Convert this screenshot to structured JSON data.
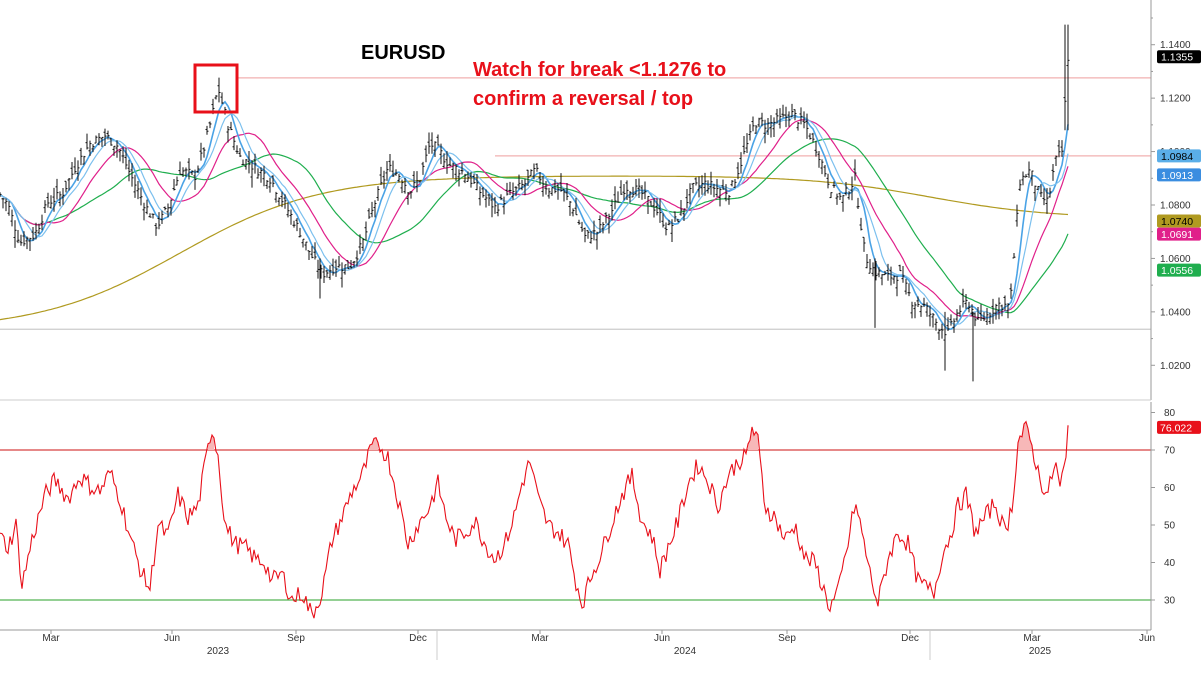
{
  "chart_data": [
    {
      "type": "candlestick",
      "title": "EURUSD",
      "annotation": [
        "Watch for break <1.1276 to",
        "confirm a reversal / top"
      ],
      "ylim": [
        1.01,
        1.15
      ],
      "y_ticks": [
        "1.0200",
        "1.0400",
        "1.0600",
        "1.0800",
        "1.1000",
        "1.1200",
        "1.1400"
      ],
      "y_tick_values": [
        1.02,
        1.04,
        1.06,
        1.08,
        1.1,
        1.12,
        1.14
      ],
      "levels": [
        {
          "name": "resistance",
          "value": 1.1276,
          "color": "#f2b0b0"
        },
        {
          "name": "support-mid",
          "value": 1.0984,
          "color": "#f2b0b0"
        },
        {
          "name": "support-low",
          "value": 1.0335,
          "color": "#cccccc"
        }
      ],
      "badges": [
        {
          "value": "1.1355",
          "y": 1.1355,
          "bg": "#000000",
          "fg": "#ffffff"
        },
        {
          "value": "1.0984",
          "y": 1.0984,
          "bg": "#5aaee8",
          "fg": "#000000"
        },
        {
          "value": "1.0913",
          "y": 1.0913,
          "bg": "#3a8de0",
          "fg": "#ffffff"
        },
        {
          "value": "1.0740",
          "y": 1.074,
          "bg": "#b09a20",
          "fg": "#000000"
        },
        {
          "value": "1.0691",
          "y": 1.0691,
          "bg": "#e0208a",
          "fg": "#ffffff"
        },
        {
          "value": "1.0556",
          "y": 1.0556,
          "bg": "#1fae4e",
          "fg": "#ffffff"
        }
      ],
      "price_anchors": [
        [
          0,
          1.084
        ],
        [
          8,
          1.08
        ],
        [
          20,
          1.066
        ],
        [
          35,
          1.069
        ],
        [
          48,
          1.081
        ],
        [
          62,
          1.084
        ],
        [
          75,
          1.094
        ],
        [
          90,
          1.103
        ],
        [
          105,
          1.106
        ],
        [
          118,
          1.102
        ],
        [
          132,
          1.09
        ],
        [
          145,
          1.08
        ],
        [
          157,
          1.072
        ],
        [
          168,
          1.079
        ],
        [
          180,
          1.093
        ],
        [
          195,
          1.091
        ],
        [
          203,
          1.1
        ],
        [
          212,
          1.113
        ],
        [
          218,
          1.124
        ],
        [
          228,
          1.11
        ],
        [
          240,
          1.098
        ],
        [
          255,
          1.094
        ],
        [
          270,
          1.09
        ],
        [
          285,
          1.08
        ],
        [
          300,
          1.07
        ],
        [
          310,
          1.062
        ],
        [
          322,
          1.054
        ],
        [
          335,
          1.057
        ],
        [
          350,
          1.057
        ],
        [
          362,
          1.065
        ],
        [
          375,
          1.081
        ],
        [
          388,
          1.094
        ],
        [
          400,
          1.091
        ],
        [
          410,
          1.085
        ],
        [
          420,
          1.09
        ],
        [
          430,
          1.103
        ],
        [
          437,
          1.101
        ],
        [
          450,
          1.095
        ],
        [
          465,
          1.092
        ],
        [
          480,
          1.085
        ],
        [
          495,
          1.079
        ],
        [
          510,
          1.084
        ],
        [
          525,
          1.088
        ],
        [
          535,
          1.093
        ],
        [
          548,
          1.086
        ],
        [
          560,
          1.086
        ],
        [
          572,
          1.08
        ],
        [
          585,
          1.068
        ],
        [
          598,
          1.07
        ],
        [
          612,
          1.078
        ],
        [
          625,
          1.087
        ],
        [
          640,
          1.085
        ],
        [
          655,
          1.079
        ],
        [
          668,
          1.071
        ],
        [
          680,
          1.076
        ],
        [
          692,
          1.086
        ],
        [
          705,
          1.088
        ],
        [
          718,
          1.086
        ],
        [
          730,
          1.085
        ],
        [
          742,
          1.097
        ],
        [
          755,
          1.111
        ],
        [
          768,
          1.11
        ],
        [
          780,
          1.112
        ],
        [
          792,
          1.114
        ],
        [
          805,
          1.11
        ],
        [
          818,
          1.1
        ],
        [
          830,
          1.087
        ],
        [
          842,
          1.082
        ],
        [
          855,
          1.09
        ],
        [
          865,
          1.061
        ],
        [
          875,
          1.055
        ],
        [
          888,
          1.053
        ],
        [
          900,
          1.054
        ],
        [
          912,
          1.044
        ],
        [
          925,
          1.042
        ],
        [
          938,
          1.035
        ],
        [
          948,
          1.032
        ],
        [
          958,
          1.04
        ],
        [
          968,
          1.044
        ],
        [
          978,
          1.036
        ],
        [
          988,
          1.039
        ],
        [
          998,
          1.043
        ],
        [
          1010,
          1.042
        ],
        [
          1020,
          1.089
        ],
        [
          1030,
          1.093
        ],
        [
          1040,
          1.083
        ],
        [
          1048,
          1.081
        ],
        [
          1055,
          1.096
        ],
        [
          1062,
          1.1
        ],
        [
          1068,
          1.1355
        ]
      ],
      "ma_colors": {
        "ma_fast": "#4aa3e6",
        "ma_mid": "#e0208a",
        "ma_slow_green": "#1fae4e",
        "ma_slow_olive": "#b09a20"
      },
      "x_ticks": [
        "Mar",
        "Jun",
        "Sep",
        "Dec",
        "Mar",
        "Jun",
        "Sep",
        "Dec",
        "Mar",
        "Jun"
      ],
      "x_years": [
        "2023",
        "2024",
        "2025"
      ]
    },
    {
      "type": "line",
      "series": [
        {
          "name": "RSI",
          "color": "#e8101a"
        }
      ],
      "ylim": [
        22,
        82
      ],
      "y_ticks": [
        "30",
        "40",
        "50",
        "60",
        "70",
        "80"
      ],
      "y_tick_values": [
        30,
        40,
        50,
        60,
        70,
        80
      ],
      "levels": [
        {
          "value": 70,
          "color": "#cc1111"
        },
        {
          "value": 30,
          "color": "#2aa02a"
        }
      ],
      "badge": {
        "value": "76.022",
        "y": 76.022,
        "bg": "#e8101a",
        "fg": "#ffffff"
      },
      "rsi_anchors": [
        [
          0,
          47
        ],
        [
          8,
          44
        ],
        [
          16,
          50
        ],
        [
          22,
          34
        ],
        [
          32,
          46
        ],
        [
          45,
          58
        ],
        [
          55,
          62
        ],
        [
          68,
          57
        ],
        [
          80,
          63
        ],
        [
          92,
          60
        ],
        [
          100,
          59
        ],
        [
          110,
          64
        ],
        [
          120,
          57
        ],
        [
          132,
          45
        ],
        [
          142,
          37
        ],
        [
          150,
          33
        ],
        [
          158,
          50
        ],
        [
          168,
          47
        ],
        [
          178,
          58
        ],
        [
          188,
          52
        ],
        [
          198,
          55
        ],
        [
          205,
          66
        ],
        [
          212,
          76
        ],
        [
          218,
          69
        ],
        [
          225,
          50
        ],
        [
          235,
          45
        ],
        [
          245,
          44
        ],
        [
          255,
          41
        ],
        [
          265,
          40
        ],
        [
          272,
          35
        ],
        [
          282,
          37
        ],
        [
          292,
          30
        ],
        [
          302,
          32
        ],
        [
          312,
          26
        ],
        [
          322,
          32
        ],
        [
          332,
          46
        ],
        [
          342,
          52
        ],
        [
          352,
          59
        ],
        [
          362,
          63
        ],
        [
          372,
          71
        ],
        [
          380,
          71
        ],
        [
          388,
          68
        ],
        [
          398,
          57
        ],
        [
          408,
          45
        ],
        [
          418,
          50
        ],
        [
          428,
          54
        ],
        [
          438,
          61
        ],
        [
          446,
          52
        ],
        [
          455,
          46
        ],
        [
          465,
          48
        ],
        [
          475,
          51
        ],
        [
          485,
          45
        ],
        [
          495,
          41
        ],
        [
          505,
          45
        ],
        [
          515,
          53
        ],
        [
          522,
          61
        ],
        [
          530,
          67
        ],
        [
          538,
          57
        ],
        [
          548,
          50
        ],
        [
          558,
          48
        ],
        [
          568,
          45
        ],
        [
          575,
          36
        ],
        [
          582,
          29
        ],
        [
          592,
          37
        ],
        [
          602,
          43
        ],
        [
          612,
          51
        ],
        [
          622,
          58
        ],
        [
          632,
          63
        ],
        [
          642,
          51
        ],
        [
          652,
          47
        ],
        [
          660,
          38
        ],
        [
          668,
          44
        ],
        [
          678,
          51
        ],
        [
          688,
          61
        ],
        [
          698,
          66
        ],
        [
          708,
          62
        ],
        [
          718,
          55
        ],
        [
          728,
          63
        ],
        [
          738,
          67
        ],
        [
          746,
          68
        ],
        [
          752,
          76
        ],
        [
          758,
          72
        ],
        [
          765,
          55
        ],
        [
          775,
          52
        ],
        [
          785,
          46
        ],
        [
          795,
          50
        ],
        [
          805,
          41
        ],
        [
          815,
          40
        ],
        [
          822,
          34
        ],
        [
          830,
          28
        ],
        [
          838,
          32
        ],
        [
          848,
          45
        ],
        [
          855,
          56
        ],
        [
          862,
          48
        ],
        [
          870,
          37
        ],
        [
          878,
          29
        ],
        [
          888,
          41
        ],
        [
          898,
          48
        ],
        [
          908,
          45
        ],
        [
          918,
          35
        ],
        [
          928,
          33
        ],
        [
          934,
          32
        ],
        [
          942,
          42
        ],
        [
          950,
          47
        ],
        [
          958,
          55
        ],
        [
          966,
          58
        ],
        [
          975,
          48
        ],
        [
          985,
          52
        ],
        [
          995,
          56
        ],
        [
          1005,
          48
        ],
        [
          1012,
          55
        ],
        [
          1018,
          72
        ],
        [
          1025,
          76
        ],
        [
          1032,
          71
        ],
        [
          1040,
          62
        ],
        [
          1048,
          58
        ],
        [
          1055,
          67
        ],
        [
          1060,
          60
        ],
        [
          1066,
          67
        ],
        [
          1068,
          76
        ]
      ]
    }
  ]
}
